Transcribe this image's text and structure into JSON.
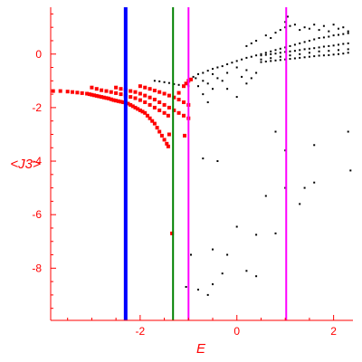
{
  "chart_data": {
    "type": "scatter",
    "title": "",
    "xlabel": "E",
    "ylabel": "<J3>",
    "xlim": [
      -3.85,
      2.4
    ],
    "ylim": [
      -9.95,
      1.75
    ],
    "x_ticks": [
      -2,
      0,
      2
    ],
    "x_tick_labels": [
      "-2",
      "0",
      "2"
    ],
    "y_ticks": [
      0,
      -2,
      -4,
      -6,
      -8
    ],
    "y_tick_labels": [
      "0",
      "-2",
      "-4",
      "-6",
      "-8"
    ],
    "grid": false,
    "axis_color": "#ff0000",
    "vertical_lines": [
      {
        "x": -2.3,
        "color": "#0000ff"
      },
      {
        "x": -1.32,
        "color": "#008000"
      },
      {
        "x": -1.0,
        "color": "#ff00ff"
      },
      {
        "x": 1.02,
        "color": "#ff00ff"
      }
    ],
    "series": [
      {
        "color": "#ff0000",
        "points": [
          [
            -3.8,
            -1.38
          ],
          [
            -3.65,
            -1.38
          ],
          [
            -3.5,
            -1.4
          ],
          [
            -3.4,
            -1.42
          ],
          [
            -3.3,
            -1.44
          ],
          [
            -3.2,
            -1.46
          ],
          [
            -3.1,
            -1.48
          ],
          [
            -3.05,
            -1.5
          ],
          [
            -3.0,
            -1.52
          ],
          [
            -2.95,
            -1.54
          ],
          [
            -2.9,
            -1.56
          ],
          [
            -2.85,
            -1.58
          ],
          [
            -2.8,
            -1.6
          ],
          [
            -2.75,
            -1.62
          ],
          [
            -2.7,
            -1.64
          ],
          [
            -2.65,
            -1.66
          ],
          [
            -2.6,
            -1.69
          ],
          [
            -2.55,
            -1.72
          ],
          [
            -2.5,
            -1.74
          ],
          [
            -2.45,
            -1.76
          ],
          [
            -2.4,
            -1.78
          ],
          [
            -2.35,
            -1.8
          ],
          [
            -2.3,
            -1.82
          ],
          [
            -2.25,
            -1.85
          ],
          [
            -2.2,
            -1.9
          ],
          [
            -2.15,
            -1.95
          ],
          [
            -2.1,
            -2.0
          ],
          [
            -2.05,
            -2.05
          ],
          [
            -2.0,
            -2.1
          ],
          [
            -1.95,
            -2.15
          ],
          [
            -1.9,
            -2.2
          ],
          [
            -1.85,
            -2.3
          ],
          [
            -1.8,
            -2.4
          ],
          [
            -1.75,
            -2.5
          ],
          [
            -1.7,
            -2.6
          ],
          [
            -1.65,
            -2.75
          ],
          [
            -1.6,
            -2.9
          ],
          [
            -1.55,
            -3.05
          ],
          [
            -1.5,
            -3.2
          ],
          [
            -1.45,
            -3.35
          ],
          [
            -1.42,
            -3.45
          ],
          [
            -3.0,
            -1.25
          ],
          [
            -2.9,
            -1.3
          ],
          [
            -2.8,
            -1.35
          ],
          [
            -2.7,
            -1.38
          ],
          [
            -2.6,
            -1.42
          ],
          [
            -2.5,
            -1.46
          ],
          [
            -2.4,
            -1.5
          ],
          [
            -2.3,
            -1.55
          ],
          [
            -2.2,
            -1.6
          ],
          [
            -2.1,
            -1.65
          ],
          [
            -2.0,
            -1.72
          ],
          [
            -1.9,
            -1.8
          ],
          [
            -1.8,
            -1.9
          ],
          [
            -1.7,
            -2.0
          ],
          [
            -1.6,
            -2.1
          ],
          [
            -1.5,
            -2.2
          ],
          [
            -1.42,
            -2.3
          ],
          [
            -2.5,
            -1.25
          ],
          [
            -2.4,
            -1.3
          ],
          [
            -2.3,
            -1.34
          ],
          [
            -2.2,
            -1.38
          ],
          [
            -2.1,
            -1.42
          ],
          [
            -2.0,
            -1.48
          ],
          [
            -1.9,
            -1.55
          ],
          [
            -1.8,
            -1.62
          ],
          [
            -1.7,
            -1.7
          ],
          [
            -1.6,
            -1.8
          ],
          [
            -1.5,
            -1.9
          ],
          [
            -1.4,
            -2.0
          ],
          [
            -1.3,
            -2.1
          ],
          [
            -1.2,
            -2.2
          ],
          [
            -1.1,
            -2.3
          ],
          [
            -1.0,
            -2.4
          ],
          [
            -2.0,
            -1.2
          ],
          [
            -1.9,
            -1.25
          ],
          [
            -1.8,
            -1.3
          ],
          [
            -1.7,
            -1.36
          ],
          [
            -1.6,
            -1.42
          ],
          [
            -1.5,
            -1.48
          ],
          [
            -1.4,
            -1.55
          ],
          [
            -1.3,
            -1.62
          ],
          [
            -1.2,
            -1.7
          ],
          [
            -1.1,
            -1.8
          ],
          [
            -1.0,
            -1.9
          ],
          [
            -1.4,
            -3.0
          ],
          [
            -1.2,
            -1.45
          ],
          [
            -1.1,
            -1.2
          ],
          [
            -1.05,
            -1.1
          ],
          [
            -1.0,
            -1.0
          ],
          [
            -0.95,
            -0.95
          ],
          [
            -1.08,
            -3.05
          ],
          [
            -1.34,
            -6.7
          ]
        ]
      },
      {
        "color": "#000000",
        "points": [
          [
            -1.7,
            -1.0
          ],
          [
            -1.6,
            -1.02
          ],
          [
            -1.5,
            -1.05
          ],
          [
            -1.4,
            -1.08
          ],
          [
            -1.3,
            -1.12
          ],
          [
            -1.2,
            -1.15
          ],
          [
            -1.0,
            -1.2
          ],
          [
            -0.9,
            -0.85
          ],
          [
            -0.8,
            -0.75
          ],
          [
            -0.7,
            -0.7
          ],
          [
            -0.6,
            -0.62
          ],
          [
            -0.5,
            -0.55
          ],
          [
            -0.4,
            -0.5
          ],
          [
            -0.3,
            -0.45
          ],
          [
            -0.2,
            -0.38
          ],
          [
            -0.1,
            -0.32
          ],
          [
            0.0,
            -0.26
          ],
          [
            0.1,
            -0.2
          ],
          [
            0.2,
            -0.14
          ],
          [
            0.3,
            -0.1
          ],
          [
            0.4,
            -0.05
          ],
          [
            0.5,
            0.0
          ],
          [
            0.6,
            0.05
          ],
          [
            0.7,
            0.1
          ],
          [
            0.8,
            0.15
          ],
          [
            0.9,
            0.2
          ],
          [
            1.0,
            0.25
          ],
          [
            1.1,
            0.3
          ],
          [
            1.2,
            0.35
          ],
          [
            1.3,
            0.4
          ],
          [
            1.4,
            0.45
          ],
          [
            1.5,
            0.5
          ],
          [
            1.6,
            0.55
          ],
          [
            1.7,
            0.6
          ],
          [
            1.8,
            0.62
          ],
          [
            1.9,
            0.65
          ],
          [
            2.0,
            0.7
          ],
          [
            2.1,
            0.72
          ],
          [
            2.2,
            0.75
          ],
          [
            2.3,
            0.78
          ],
          [
            0.5,
            -0.3
          ],
          [
            0.6,
            -0.28
          ],
          [
            0.7,
            -0.26
          ],
          [
            0.8,
            -0.24
          ],
          [
            0.9,
            -0.22
          ],
          [
            1.0,
            -0.2
          ],
          [
            1.1,
            -0.18
          ],
          [
            1.2,
            -0.16
          ],
          [
            1.3,
            -0.14
          ],
          [
            1.4,
            -0.12
          ],
          [
            1.5,
            -0.1
          ],
          [
            1.6,
            -0.08
          ],
          [
            1.7,
            -0.06
          ],
          [
            1.8,
            -0.05
          ],
          [
            1.9,
            -0.04
          ],
          [
            2.0,
            -0.02
          ],
          [
            2.1,
            0.0
          ],
          [
            2.2,
            0.02
          ],
          [
            2.3,
            0.05
          ],
          [
            0.5,
            -0.05
          ],
          [
            0.6,
            -0.03
          ],
          [
            0.7,
            0.0
          ],
          [
            0.8,
            0.02
          ],
          [
            0.9,
            0.05
          ],
          [
            1.0,
            0.08
          ],
          [
            1.1,
            0.1
          ],
          [
            1.2,
            0.12
          ],
          [
            1.3,
            0.15
          ],
          [
            1.4,
            0.18
          ],
          [
            1.5,
            0.2
          ],
          [
            1.6,
            0.22
          ],
          [
            1.7,
            0.25
          ],
          [
            1.8,
            0.28
          ],
          [
            1.9,
            0.3
          ],
          [
            2.0,
            0.32
          ],
          [
            2.1,
            0.35
          ],
          [
            2.2,
            0.38
          ],
          [
            2.3,
            0.4
          ],
          [
            0.5,
            -0.2
          ],
          [
            0.7,
            -0.15
          ],
          [
            0.9,
            -0.1
          ],
          [
            1.1,
            -0.05
          ],
          [
            1.3,
            0.0
          ],
          [
            1.5,
            0.05
          ],
          [
            1.7,
            0.1
          ],
          [
            1.9,
            0.12
          ],
          [
            2.1,
            0.15
          ],
          [
            2.3,
            0.18
          ],
          [
            0.8,
            0.8
          ],
          [
            0.9,
            0.9
          ],
          [
            1.0,
            1.0
          ],
          [
            1.1,
            1.05
          ],
          [
            1.2,
            1.1
          ],
          [
            1.0,
            1.2
          ],
          [
            1.05,
            1.4
          ],
          [
            1.3,
            0.9
          ],
          [
            1.5,
            0.95
          ],
          [
            1.7,
            0.9
          ],
          [
            1.9,
            0.85
          ],
          [
            2.1,
            0.95
          ],
          [
            2.3,
            0.85
          ],
          [
            1.4,
            1.0
          ],
          [
            1.6,
            1.1
          ],
          [
            1.8,
            1.05
          ],
          [
            2.0,
            1.1
          ],
          [
            2.2,
            1.0
          ],
          [
            0.6,
            0.7
          ],
          [
            0.7,
            0.6
          ],
          [
            0.4,
            0.5
          ],
          [
            0.3,
            0.4
          ],
          [
            0.2,
            0.3
          ],
          [
            0.0,
            -0.5
          ],
          [
            0.2,
            -0.6
          ],
          [
            0.4,
            -0.7
          ],
          [
            -0.2,
            -0.7
          ],
          [
            -0.4,
            -0.9
          ],
          [
            -0.6,
            -1.1
          ],
          [
            -0.2,
            -1.3
          ],
          [
            0.0,
            -1.6
          ],
          [
            0.2,
            -1.1
          ],
          [
            0.3,
            -0.9
          ],
          [
            0.1,
            -0.85
          ],
          [
            -0.5,
            -1.3
          ],
          [
            -0.3,
            -1.0
          ],
          [
            -0.7,
            -1.5
          ],
          [
            -0.8,
            -1.2
          ],
          [
            -0.5,
            -0.75
          ],
          [
            -0.7,
            -1.0
          ],
          [
            -0.6,
            -1.8
          ],
          [
            -0.85,
            -0.9
          ],
          [
            -0.7,
            -3.9
          ],
          [
            -0.4,
            -4.0
          ],
          [
            0.8,
            -2.9
          ],
          [
            1.0,
            -3.6
          ],
          [
            1.6,
            -3.4
          ],
          [
            2.3,
            -2.9
          ],
          [
            2.35,
            -4.35
          ],
          [
            1.6,
            -4.8
          ],
          [
            1.4,
            -5.0
          ],
          [
            1.0,
            -5.0
          ],
          [
            0.6,
            -5.3
          ],
          [
            1.3,
            -5.6
          ],
          [
            0.8,
            -6.7
          ],
          [
            0.0,
            -6.45
          ],
          [
            0.4,
            -6.75
          ],
          [
            -0.2,
            -7.5
          ],
          [
            -0.5,
            -7.3
          ],
          [
            -0.95,
            -7.5
          ],
          [
            -0.5,
            -8.6
          ],
          [
            -0.3,
            -8.2
          ],
          [
            0.2,
            -8.1
          ],
          [
            0.4,
            -8.3
          ],
          [
            -1.05,
            -8.7
          ],
          [
            -0.8,
            -8.8
          ],
          [
            -0.6,
            -9.0
          ]
        ]
      }
    ]
  }
}
